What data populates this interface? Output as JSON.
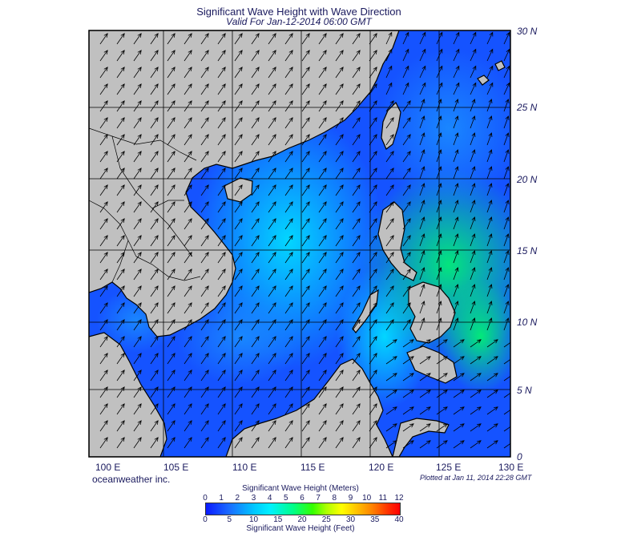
{
  "title": "Significant Wave Height with Wave Direction",
  "subtitle": "Valid For Jan-12-2014 06:00 GMT",
  "company": "oceanweather inc.",
  "plotted": "Plotted at Jan 11, 2014 22:28 GMT",
  "lat_labels": [
    "30 N",
    "25 N",
    "20 N",
    "15 N",
    "10 N",
    "5 N",
    "0"
  ],
  "lon_labels": [
    "100 E",
    "105 E",
    "110 E",
    "115 E",
    "120 E",
    "125 E",
    "130 E"
  ],
  "colorbar": {
    "title_meters": "Significant Wave Height (Meters)",
    "title_feet": "Significant Wave Height (Feet)",
    "meter_ticks": [
      "0",
      "1",
      "2",
      "3",
      "4",
      "5",
      "6",
      "7",
      "8",
      "9",
      "10",
      "11",
      "12"
    ],
    "feet_ticks": [
      "0",
      "5",
      "10",
      "15",
      "20",
      "25",
      "30",
      "35",
      "40"
    ]
  },
  "colors": {
    "land": "#c0c0c0",
    "deep_blue": "#0a1aff",
    "cyan": "#00e5ff",
    "green": "#00ff66",
    "text": "#1a1a5e"
  }
}
